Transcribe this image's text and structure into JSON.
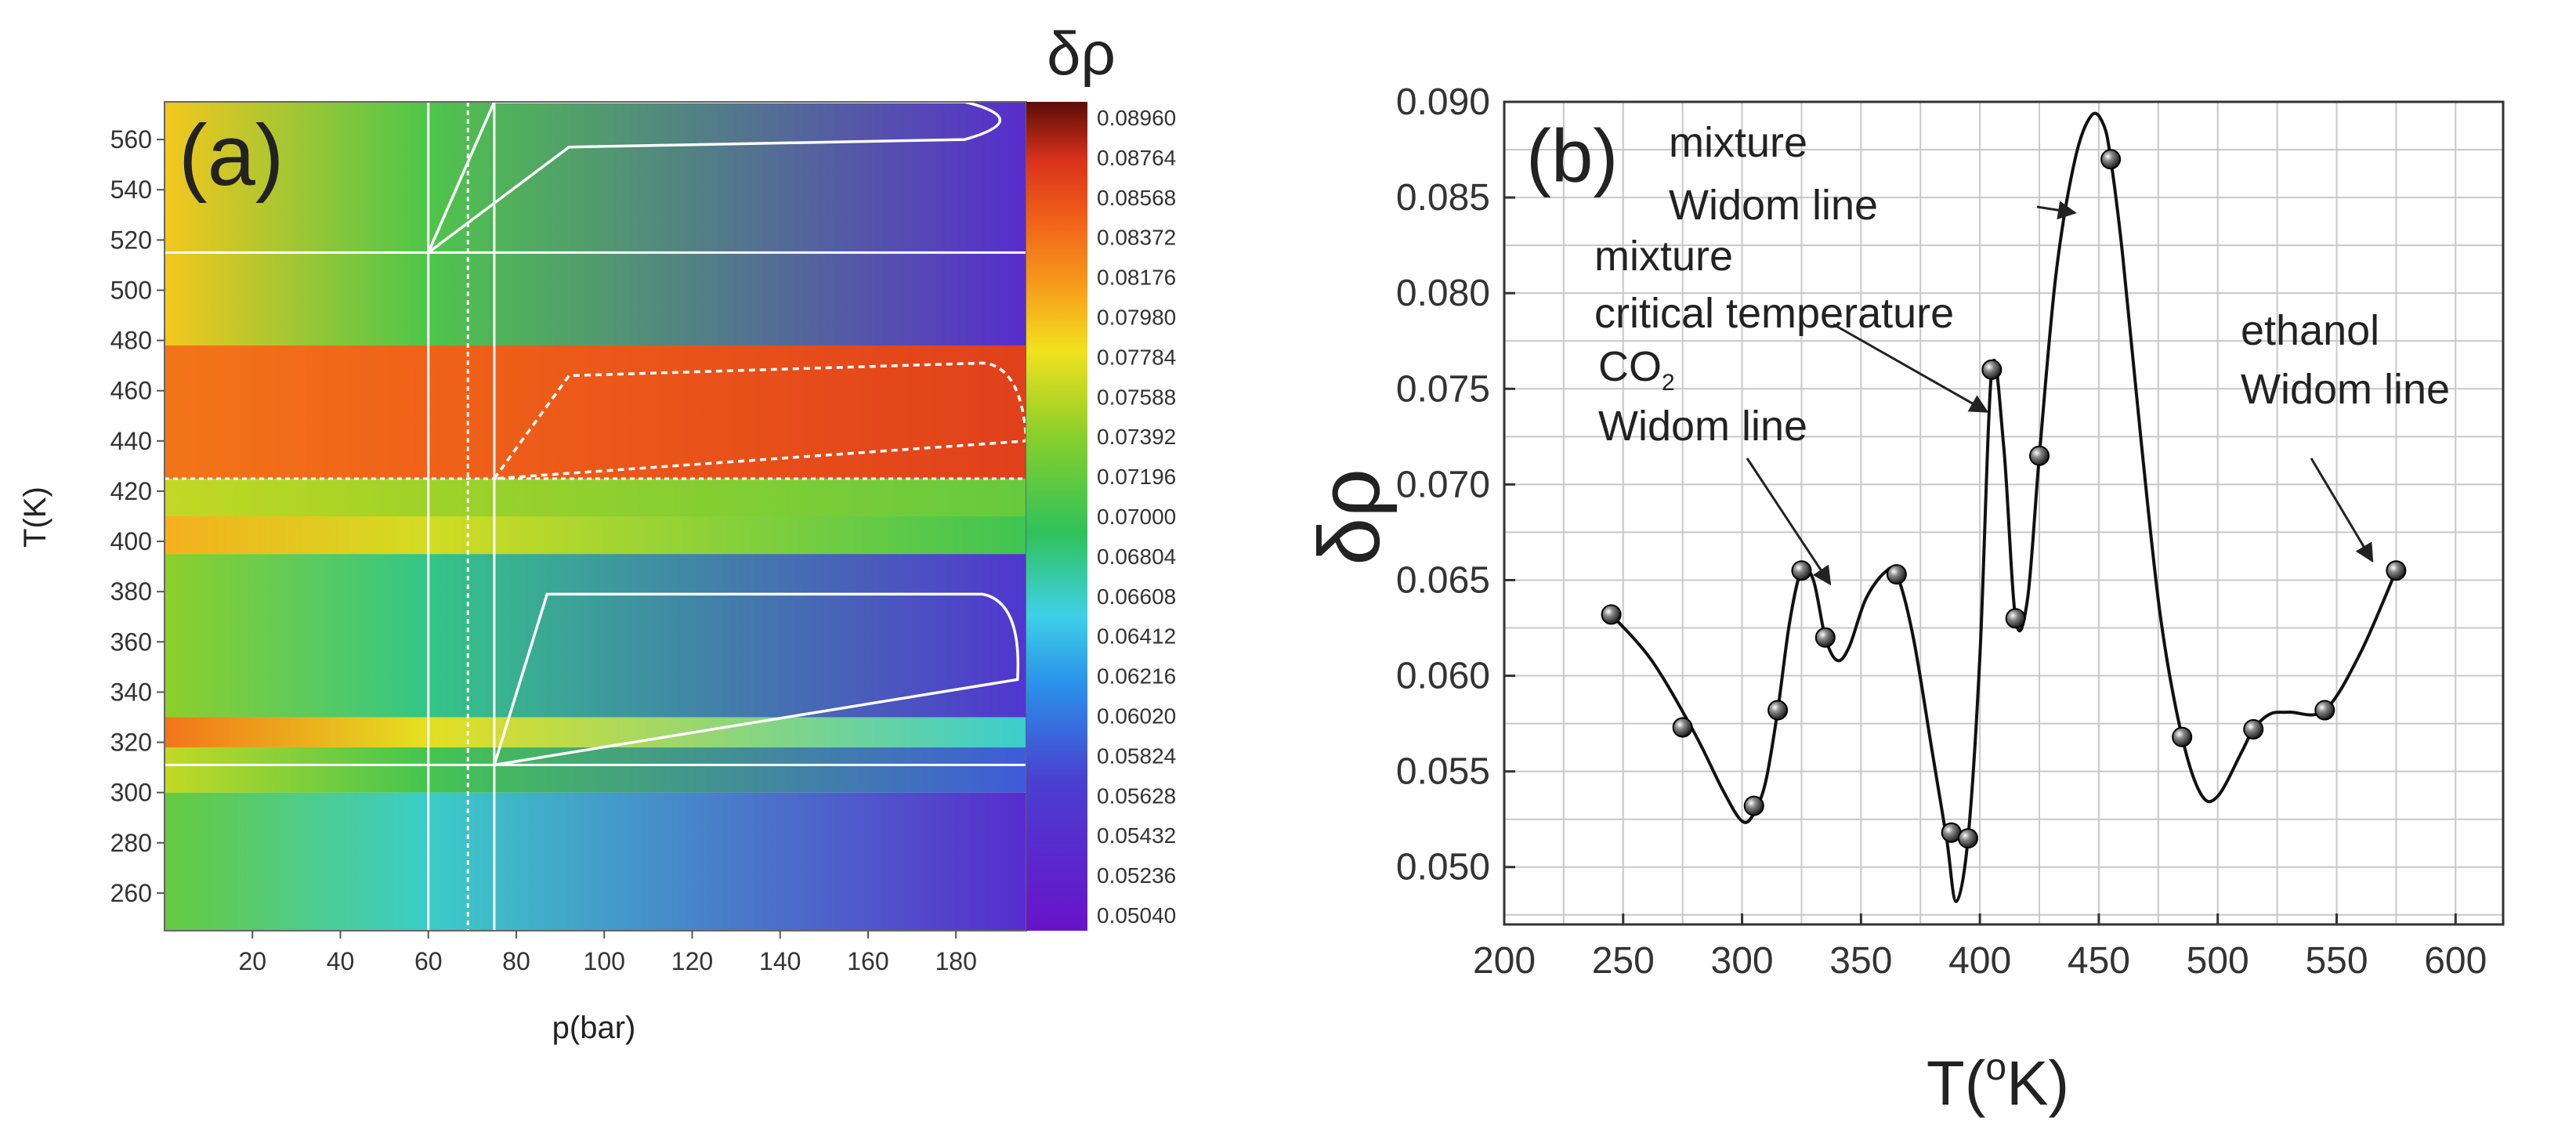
{
  "chart_data": [
    {
      "panel": "(a)",
      "type": "heatmap",
      "xlabel": "p(bar)",
      "ylabel": "T(K)",
      "xlim": [
        0,
        196
      ],
      "ylim": [
        245,
        575
      ],
      "xticks": [
        20,
        40,
        60,
        80,
        100,
        120,
        140,
        160,
        180
      ],
      "yticks": [
        260,
        280,
        300,
        320,
        340,
        360,
        380,
        400,
        420,
        440,
        460,
        480,
        500,
        520,
        540,
        560
      ],
      "colorbar": {
        "title": "δρ",
        "range": [
          0.0504,
          0.0896
        ],
        "ticks": [
          "0.08960",
          "0.08764",
          "0.08568",
          "0.08372",
          "0.08176",
          "0.07980",
          "0.07784",
          "0.07588",
          "0.07392",
          "0.07196",
          "0.07000",
          "0.06804",
          "0.06608",
          "0.06412",
          "0.06216",
          "0.06020",
          "0.05824",
          "0.05628",
          "0.05432",
          "0.05236",
          "0.05040"
        ]
      },
      "reference_lines": {
        "vertical_p": [
          60,
          69,
          75
        ],
        "horizontal_T": [
          515,
          425,
          311
        ]
      },
      "bands": [
        {
          "T_range": [
            245,
            300
          ],
          "low_p_value": 0.072,
          "high_p_value": 0.0545
        },
        {
          "T_range": [
            300,
            318
          ],
          "low_p_value": 0.076,
          "high_p_value": 0.059
        },
        {
          "T_range": [
            318,
            330
          ],
          "low_p_value": 0.083,
          "high_p_value": 0.066
        },
        {
          "T_range": [
            330,
            395
          ],
          "low_p_value": 0.074,
          "high_p_value": 0.056
        },
        {
          "T_range": [
            395,
            410
          ],
          "low_p_value": 0.08,
          "high_p_value": 0.07
        },
        {
          "T_range": [
            410,
            425
          ],
          "low_p_value": 0.076,
          "high_p_value": 0.072
        },
        {
          "T_range": [
            425,
            478
          ],
          "low_p_value": 0.083,
          "high_p_value": 0.086
        },
        {
          "T_range": [
            478,
            575
          ],
          "low_p_value": 0.079,
          "high_p_value": 0.0545
        }
      ]
    },
    {
      "panel": "(b)",
      "type": "line",
      "xlabel": "T(",
      "xlabel_sup": "o",
      "xlabel_end": "K)",
      "ylabel": "δρ",
      "xlim": [
        200,
        620
      ],
      "ylim": [
        0.047,
        0.09
      ],
      "xticks": [
        200,
        250,
        300,
        350,
        400,
        450,
        500,
        550,
        600
      ],
      "yticks": [
        "0.050",
        "0.055",
        "0.060",
        "0.065",
        "0.070",
        "0.075",
        "0.080",
        "0.085",
        "0.090"
      ],
      "series": [
        {
          "name": "δρ",
          "x": [
            245,
            275,
            305,
            315,
            325,
            335,
            365,
            388,
            395,
            405,
            415,
            425,
            455,
            485,
            515,
            545,
            575
          ],
          "y": [
            0.0632,
            0.0573,
            0.0532,
            0.0582,
            0.0655,
            0.062,
            0.0653,
            0.0518,
            0.0515,
            0.076,
            0.063,
            0.0715,
            0.087,
            0.0568,
            0.0572,
            0.0582,
            0.0655
          ]
        }
      ],
      "curve": {
        "x": [
          245,
          262,
          280,
          292,
          300,
          305,
          310,
          315,
          320,
          325,
          330,
          335,
          340,
          345,
          352,
          360,
          365,
          372,
          380,
          386,
          390,
          395,
          400,
          405,
          410,
          415,
          420,
          425,
          432,
          440,
          447,
          452,
          455,
          460,
          468,
          476,
          485,
          493,
          500,
          510,
          515,
          522,
          530,
          545,
          560,
          575
        ],
        "y": [
          0.0632,
          0.0608,
          0.057,
          0.054,
          0.0524,
          0.0528,
          0.0545,
          0.0582,
          0.0628,
          0.0655,
          0.065,
          0.062,
          0.0608,
          0.0615,
          0.064,
          0.0654,
          0.0653,
          0.062,
          0.056,
          0.0515,
          0.0482,
          0.0515,
          0.061,
          0.076,
          0.072,
          0.063,
          0.064,
          0.0715,
          0.081,
          0.087,
          0.0893,
          0.0888,
          0.087,
          0.082,
          0.072,
          0.063,
          0.0568,
          0.0538,
          0.0537,
          0.056,
          0.0572,
          0.058,
          0.0581,
          0.0582,
          0.0612,
          0.0655
        ]
      },
      "annotations": [
        {
          "lines": [
            "mixture",
            "Widom line"
          ],
          "arrow_to": [
            440,
            0.0842
          ]
        },
        {
          "lines": [
            "mixture",
            "critical temperature"
          ],
          "arrow_to": [
            403,
            0.0738
          ]
        },
        {
          "lines": [
            "CO",
            "Widom line"
          ],
          "sub": "2",
          "arrow_to": [
            337,
            0.0648
          ]
        },
        {
          "lines": [
            "ethanol",
            "Widom line"
          ],
          "arrow_to": [
            565,
            0.066
          ]
        }
      ]
    }
  ]
}
